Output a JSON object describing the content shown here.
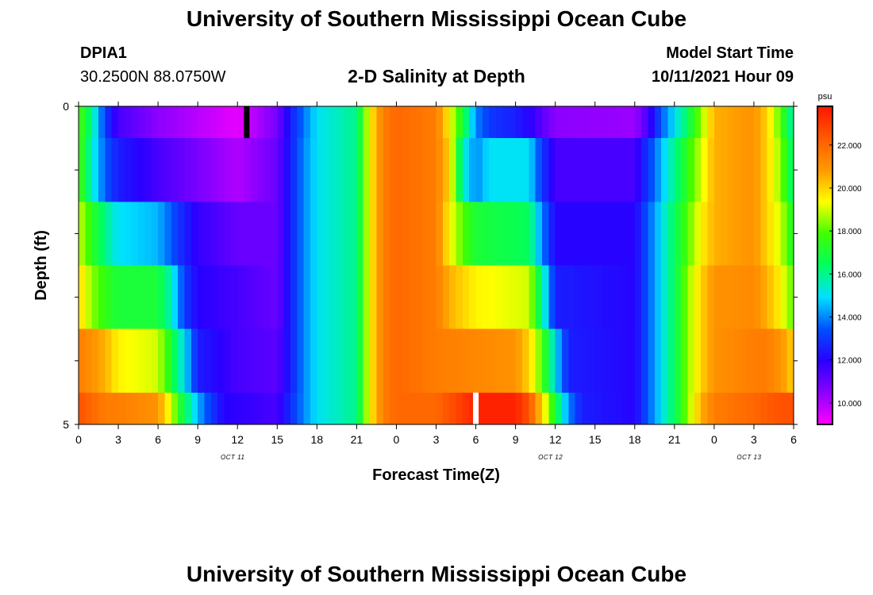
{
  "header": {
    "title": "University of Southern Mississippi Ocean Cube",
    "station_id": "DPIA1",
    "coordinates": "30.2500N  88.0750W",
    "chart_title": "2-D Salinity at Depth",
    "model_start_label": "Model Start Time",
    "model_start_value": "10/11/2021 Hour 09"
  },
  "footer": {
    "title": "University of Southern Mississippi Ocean Cube"
  },
  "chart_data": {
    "type": "heatmap",
    "title": "2-D Salinity at Depth",
    "xlabel": "Forecast Time(Z)",
    "ylabel": "Depth (ft)",
    "x_tick_labels": [
      "0",
      "3",
      "6",
      "9",
      "12",
      "15",
      "18",
      "21",
      "0",
      "3",
      "6",
      "9",
      "12",
      "15",
      "18",
      "21",
      "0",
      "3",
      "6"
    ],
    "y_tick_labels": [
      "0",
      "5"
    ],
    "ylim": [
      0,
      5
    ],
    "date_labels": [
      {
        "label": "OCT 11",
        "at_tick": 4
      },
      {
        "label": "OCT 12",
        "at_tick": 12
      },
      {
        "label": "OCT 13",
        "at_tick": 17
      }
    ],
    "colorbar": {
      "unit": "psu",
      "range": [
        9.0,
        23.8
      ],
      "tick_values": [
        10.0,
        12.0,
        14.0,
        16.0,
        18.0,
        20.0,
        22.0
      ],
      "tick_labels": [
        "10.000",
        "12.000",
        "14.000",
        "16.000",
        "18.000",
        "20.000",
        "22.000"
      ],
      "colors": [
        "#ff00ff",
        "#8c00ff",
        "#2800ff",
        "#0050ff",
        "#00e0ff",
        "#00ff60",
        "#40ff00",
        "#ffff00",
        "#ff9900",
        "#ff5a00",
        "#ff1400"
      ]
    },
    "time_hours_per_column": 1,
    "depth_layers": [
      {
        "depth_range": [
          0,
          0.5
        ],
        "anchors": [
          [
            0,
            18
          ],
          [
            1,
            16
          ],
          [
            2,
            13
          ],
          [
            3,
            11.5
          ],
          [
            6,
            10.5
          ],
          [
            12,
            9.3
          ],
          [
            15,
            10.8
          ],
          [
            16,
            12.5
          ],
          [
            17,
            13.8
          ],
          [
            18,
            15
          ],
          [
            21,
            16
          ],
          [
            22,
            19.5
          ],
          [
            23,
            21.5
          ],
          [
            24,
            22
          ],
          [
            27,
            21.5
          ],
          [
            28,
            19.5
          ],
          [
            29,
            17
          ],
          [
            30,
            14
          ],
          [
            31,
            13
          ],
          [
            33,
            12.5
          ],
          [
            34,
            12
          ],
          [
            36,
            10.5
          ],
          [
            42,
            10.3
          ],
          [
            43,
            11.5
          ],
          [
            44,
            13.5
          ],
          [
            45,
            15
          ],
          [
            46,
            16.5
          ],
          [
            47,
            18.5
          ],
          [
            48,
            20.5
          ],
          [
            51,
            21
          ],
          [
            52,
            20
          ],
          [
            53,
            18
          ],
          [
            54,
            15.5
          ],
          [
            54.6,
            13
          ]
        ]
      },
      {
        "depth_range": [
          0.5,
          1.5
        ],
        "anchors": [
          [
            0,
            18
          ],
          [
            1,
            15.5
          ],
          [
            2,
            13.5
          ],
          [
            3,
            12.5
          ],
          [
            6,
            11.5
          ],
          [
            10,
            10.5
          ],
          [
            12,
            10
          ],
          [
            15,
            11
          ],
          [
            16,
            12.5
          ],
          [
            17,
            14
          ],
          [
            18,
            15
          ],
          [
            21,
            16
          ],
          [
            22,
            19.5
          ],
          [
            23,
            21.5
          ],
          [
            24,
            22
          ],
          [
            27,
            21.5
          ],
          [
            28,
            20
          ],
          [
            29,
            15.5
          ],
          [
            30,
            14
          ],
          [
            31,
            15
          ],
          [
            34,
            15
          ],
          [
            35,
            13
          ],
          [
            36,
            11.5
          ],
          [
            42,
            11.5
          ],
          [
            43,
            13
          ],
          [
            44,
            14.5
          ],
          [
            45,
            16
          ],
          [
            46,
            17.5
          ],
          [
            47,
            19
          ],
          [
            48,
            20.5
          ],
          [
            51,
            21
          ],
          [
            52,
            20
          ],
          [
            53,
            18.5
          ],
          [
            54,
            16
          ],
          [
            54.6,
            15
          ]
        ]
      },
      {
        "depth_range": [
          1.5,
          2.5
        ],
        "anchors": [
          [
            0,
            19
          ],
          [
            1,
            17.5
          ],
          [
            2,
            16
          ],
          [
            3,
            15
          ],
          [
            6,
            14.5
          ],
          [
            7,
            13.5
          ],
          [
            8,
            12.5
          ],
          [
            9,
            11.8
          ],
          [
            12,
            11
          ],
          [
            15,
            11
          ],
          [
            16,
            12.5
          ],
          [
            17,
            14
          ],
          [
            18,
            15
          ],
          [
            21,
            16
          ],
          [
            22,
            19.5
          ],
          [
            23,
            21.5
          ],
          [
            24,
            22
          ],
          [
            27,
            21.5
          ],
          [
            28,
            19.5
          ],
          [
            29,
            18
          ],
          [
            30,
            17
          ],
          [
            34,
            16.5
          ],
          [
            35,
            14
          ],
          [
            36,
            12
          ],
          [
            42,
            12
          ],
          [
            43,
            13.5
          ],
          [
            44,
            15
          ],
          [
            45,
            16.5
          ],
          [
            46,
            18
          ],
          [
            47,
            19.5
          ],
          [
            48,
            20.5
          ],
          [
            51,
            21
          ],
          [
            52,
            20
          ],
          [
            53,
            19
          ],
          [
            54,
            17
          ],
          [
            54.6,
            16
          ]
        ]
      },
      {
        "depth_range": [
          2.5,
          3.5
        ],
        "anchors": [
          [
            0,
            20
          ],
          [
            1,
            18.5
          ],
          [
            2,
            17.5
          ],
          [
            3,
            17
          ],
          [
            6,
            17
          ],
          [
            7,
            15.5
          ],
          [
            8,
            13
          ],
          [
            9,
            12
          ],
          [
            12,
            11.5
          ],
          [
            15,
            11
          ],
          [
            16,
            12.5
          ],
          [
            17,
            14
          ],
          [
            18,
            15
          ],
          [
            21,
            16
          ],
          [
            22,
            19.5
          ],
          [
            23,
            21.5
          ],
          [
            24,
            22
          ],
          [
            27,
            21.5
          ],
          [
            28,
            20.5
          ],
          [
            29,
            20
          ],
          [
            30,
            19.5
          ],
          [
            34,
            19
          ],
          [
            35,
            16
          ],
          [
            36,
            12.5
          ],
          [
            42,
            12
          ],
          [
            43,
            13.5
          ],
          [
            44,
            15
          ],
          [
            45,
            16.5
          ],
          [
            46,
            18.5
          ],
          [
            47,
            20
          ],
          [
            48,
            21
          ],
          [
            51,
            21.2
          ],
          [
            52,
            20.5
          ],
          [
            53,
            19.5
          ],
          [
            54,
            18
          ],
          [
            54.6,
            17
          ]
        ]
      },
      {
        "depth_range": [
          3.5,
          4.5
        ],
        "anchors": [
          [
            0,
            21.5
          ],
          [
            1,
            21
          ],
          [
            2,
            20.5
          ],
          [
            3,
            19.5
          ],
          [
            6,
            19
          ],
          [
            7,
            17
          ],
          [
            8,
            15
          ],
          [
            9,
            12.5
          ],
          [
            12,
            11.5
          ],
          [
            15,
            11.2
          ],
          [
            16,
            12.5
          ],
          [
            17,
            14
          ],
          [
            18,
            15
          ],
          [
            21,
            16
          ],
          [
            22,
            19.5
          ],
          [
            23,
            21.5
          ],
          [
            24,
            22
          ],
          [
            27,
            21.5
          ],
          [
            33,
            21
          ],
          [
            34,
            20
          ],
          [
            35,
            18
          ],
          [
            36,
            15
          ],
          [
            37,
            12.5
          ],
          [
            42,
            12
          ],
          [
            43,
            13.5
          ],
          [
            44,
            15
          ],
          [
            45,
            16.5
          ],
          [
            46,
            18.5
          ],
          [
            47,
            20
          ],
          [
            48,
            21
          ],
          [
            51,
            21.5
          ],
          [
            52,
            21.5
          ],
          [
            53,
            21
          ],
          [
            54,
            20
          ],
          [
            54.6,
            19
          ]
        ]
      },
      {
        "depth_range": [
          4.5,
          5
        ],
        "anchors": [
          [
            0,
            22.5
          ],
          [
            1,
            22
          ],
          [
            2,
            21.5
          ],
          [
            3,
            21.5
          ],
          [
            6,
            21
          ],
          [
            7,
            19
          ],
          [
            8,
            16.5
          ],
          [
            9,
            14.5
          ],
          [
            10,
            13
          ],
          [
            11,
            12
          ],
          [
            15,
            11.5
          ],
          [
            16,
            12.8
          ],
          [
            17,
            14
          ],
          [
            18,
            15
          ],
          [
            21,
            16
          ],
          [
            22,
            19.5
          ],
          [
            23,
            21.5
          ],
          [
            24,
            22
          ],
          [
            27,
            22
          ],
          [
            28,
            22.5
          ],
          [
            29,
            23
          ],
          [
            30,
            23.5
          ],
          [
            33,
            23.5
          ],
          [
            34,
            22.5
          ],
          [
            35,
            20
          ],
          [
            36,
            17
          ],
          [
            37,
            14
          ],
          [
            38,
            12.5
          ],
          [
            42,
            12
          ],
          [
            43,
            13.5
          ],
          [
            44,
            15
          ],
          [
            45,
            16.5
          ],
          [
            46,
            18.5
          ],
          [
            47,
            20.5
          ],
          [
            48,
            21.5
          ],
          [
            51,
            22
          ],
          [
            52,
            22.3
          ],
          [
            53,
            22.5
          ],
          [
            54,
            22.5
          ],
          [
            54.6,
            22
          ]
        ]
      }
    ],
    "markers": [
      {
        "color": "#000000",
        "time_hours": 12.7,
        "depth_range": [
          0,
          0.5
        ]
      },
      {
        "color": "#ffffff",
        "time_hours": 30.0,
        "depth_range": [
          4.5,
          5
        ]
      }
    ]
  }
}
